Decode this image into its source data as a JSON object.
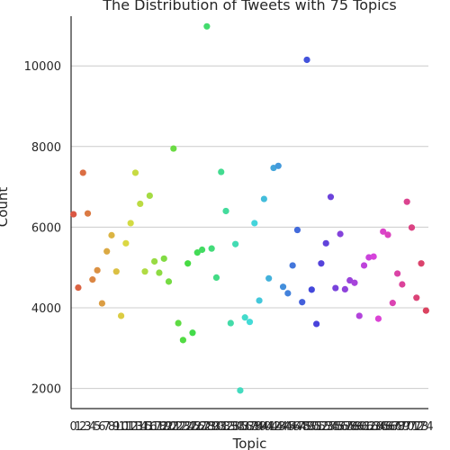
{
  "chart_data": {
    "type": "scatter",
    "title": "The Distribution of Tweets with 75 Topics",
    "xlabel": "Topic",
    "ylabel": "Count",
    "ylim": [
      1500,
      11500
    ],
    "yticks": [
      2000,
      4000,
      6000,
      8000,
      10000
    ],
    "grid": "horizontal",
    "palette": "husl",
    "categories": [
      "0",
      "1",
      "2",
      "3",
      "4",
      "5",
      "6",
      "7",
      "8",
      "9",
      "10",
      "11",
      "12",
      "13",
      "14",
      "15",
      "16",
      "17",
      "18",
      "19",
      "20",
      "21",
      "22",
      "23",
      "24",
      "25",
      "26",
      "27",
      "28",
      "29",
      "30",
      "31",
      "32",
      "33",
      "34",
      "35",
      "36",
      "37",
      "38",
      "39",
      "40",
      "41",
      "42",
      "43",
      "44",
      "45",
      "46",
      "47",
      "48",
      "49",
      "50",
      "51",
      "52",
      "53",
      "54",
      "55",
      "56",
      "57",
      "58",
      "59",
      "60",
      "61",
      "62",
      "63",
      "64",
      "65",
      "66",
      "67",
      "68",
      "69",
      "70",
      "71",
      "72",
      "73",
      "74"
    ],
    "values": [
      6320,
      4500,
      7350,
      6340,
      4700,
      4930,
      4110,
      5400,
      5800,
      4900,
      3800,
      5600,
      6100,
      7350,
      6580,
      4900,
      6780,
      5150,
      4870,
      5220,
      4650,
      7950,
      3620,
      3200,
      5100,
      3380,
      5370,
      5440,
      10980,
      5470,
      4750,
      7370,
      6400,
      3620,
      5580,
      1950,
      3760,
      3650,
      6100,
      4180,
      6700,
      4730,
      7470,
      7520,
      4520,
      4360,
      5050,
      5930,
      4140,
      10150,
      4450,
      3600,
      5100,
      5600,
      6750,
      4490,
      5830,
      4460,
      4680,
      4620,
      3800,
      5050,
      5250,
      5270,
      3730,
      5890,
      5810,
      4120,
      4850,
      4580,
      6630,
      5990,
      4250,
      5100,
      3930
    ]
  }
}
